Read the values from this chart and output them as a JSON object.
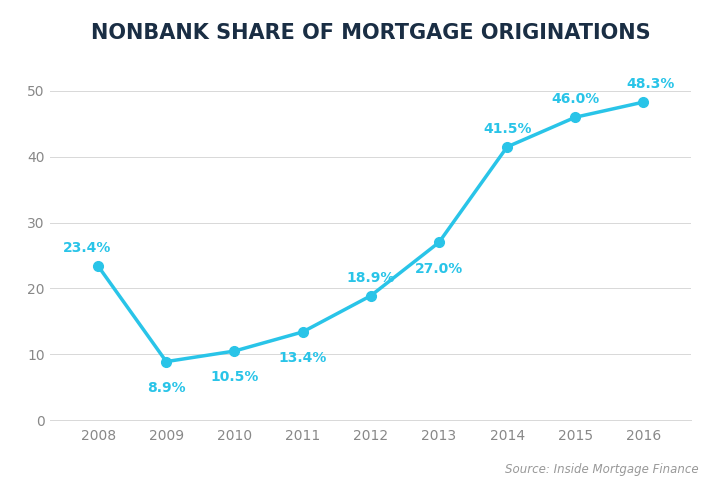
{
  "title": "NONBANK SHARE OF MORTGAGE ORIGINATIONS",
  "years": [
    2008,
    2009,
    2010,
    2011,
    2012,
    2013,
    2014,
    2015,
    2016
  ],
  "values": [
    23.4,
    8.9,
    10.5,
    13.4,
    18.9,
    27.0,
    41.5,
    46.0,
    48.3
  ],
  "labels": [
    "23.4%",
    "8.9%",
    "10.5%",
    "13.4%",
    "18.9%",
    "27.0%",
    "41.5%",
    "46.0%",
    "48.3%"
  ],
  "label_offsets_x": [
    -8,
    0,
    0,
    0,
    0,
    0,
    0,
    0,
    5
  ],
  "label_offsets_y": [
    8,
    -14,
    -14,
    -14,
    8,
    -14,
    8,
    8,
    8
  ],
  "line_color": "#29C4E8",
  "label_color": "#29C4E8",
  "marker_color": "#29C4E8",
  "background_color": "#ffffff",
  "grid_color": "#d8d8d8",
  "title_color": "#1a2e44",
  "axis_tick_color": "#888888",
  "source_text": "Source: Inside Mortgage Finance",
  "source_color": "#999999",
  "ylim": [
    0,
    55
  ],
  "yticks": [
    0,
    10,
    20,
    30,
    40,
    50
  ],
  "title_fontsize": 15,
  "label_fontsize": 10,
  "tick_fontsize": 10,
  "source_fontsize": 8.5,
  "line_width": 2.5,
  "marker_size": 7
}
